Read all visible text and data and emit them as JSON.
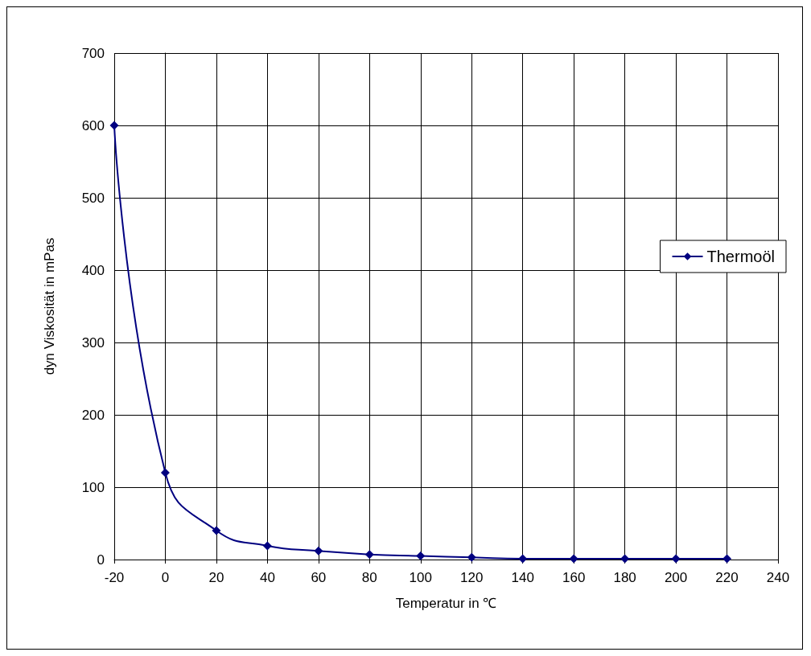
{
  "chart_data": {
    "type": "line",
    "xlabel": "Temperatur in ℃",
    "ylabel": "dyn Viskosität in mPas",
    "x": [
      -20,
      0,
      20,
      40,
      60,
      80,
      100,
      120,
      140,
      160,
      180,
      200,
      220
    ],
    "series": [
      {
        "name": "Thermoöl",
        "color": "#000080",
        "values": [
          600,
          120,
          40,
          19,
          12,
          7,
          5,
          3,
          1,
          1,
          1,
          1,
          1
        ]
      }
    ],
    "xlim": [
      -20,
      240
    ],
    "xticks": [
      -20,
      0,
      20,
      40,
      60,
      80,
      100,
      120,
      140,
      160,
      180,
      200,
      220,
      240
    ],
    "ylim": [
      0,
      700
    ],
    "yticks": [
      0,
      100,
      200,
      300,
      400,
      500,
      600,
      700
    ],
    "grid": true,
    "legend": "right",
    "marker": "diamond",
    "line_style": "solid"
  }
}
